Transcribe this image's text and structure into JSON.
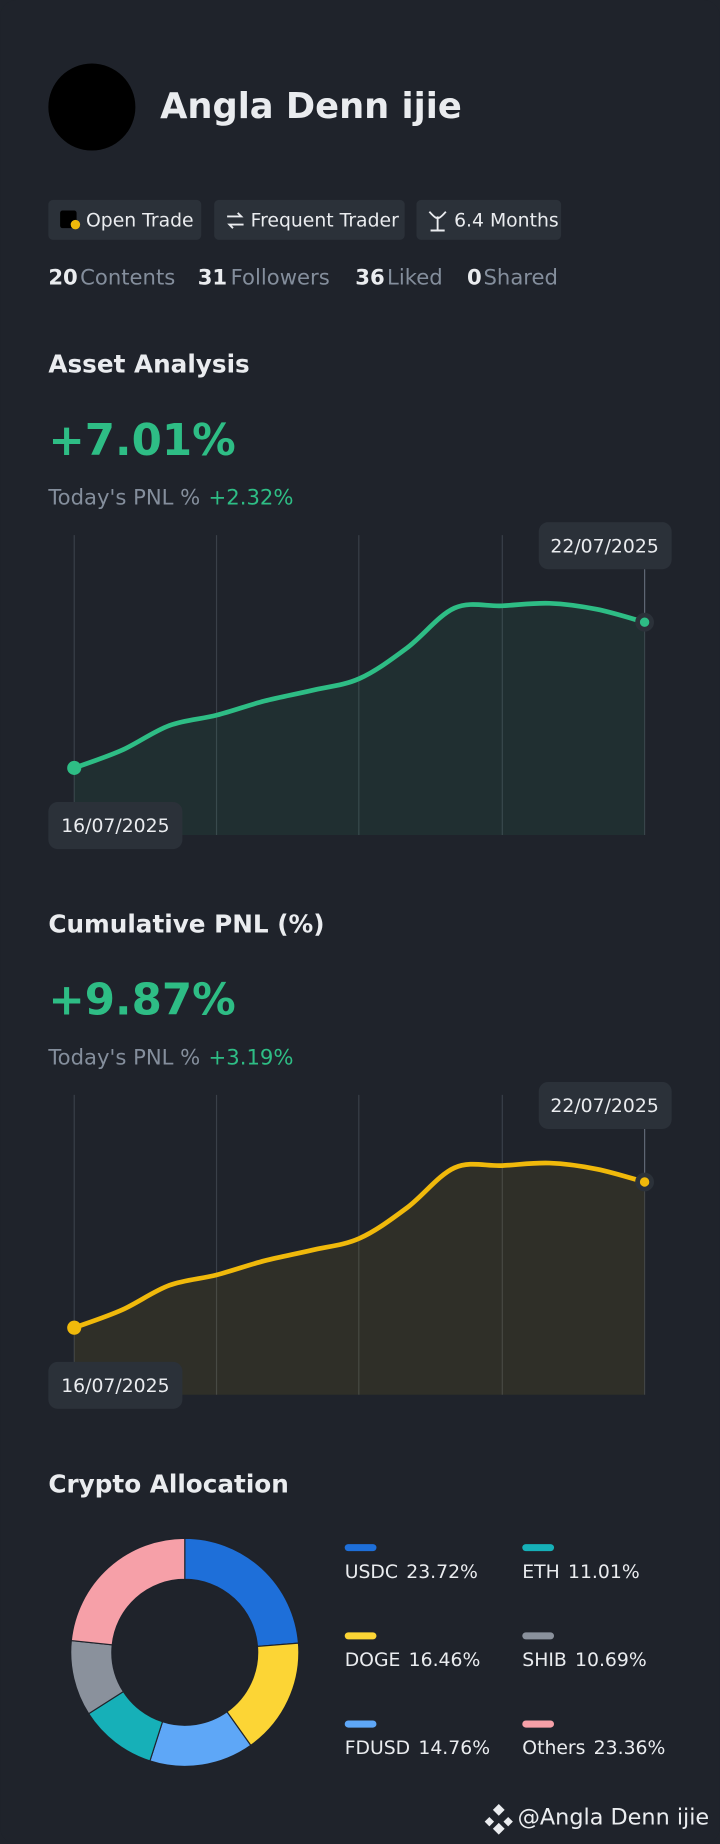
{
  "profile": {
    "name": "Angla Denn ijie",
    "badges": [
      "Open Trade",
      "Frequent Trader",
      "6.4 Months"
    ],
    "stats": [
      {
        "value": 20,
        "label": "Contents"
      },
      {
        "value": 31,
        "label": "Followers"
      },
      {
        "value": 36,
        "label": "Liked"
      },
      {
        "value": 0,
        "label": "Shared"
      }
    ]
  },
  "chart_data": [
    {
      "type": "line",
      "title": "Asset Analysis",
      "headline": "+7.01%",
      "subtitle": "Today's PNL %",
      "today": "+2.32%",
      "start_date": "16/07/2025",
      "end_date": "22/07/2025",
      "series": [
        {
          "color": "#2ebd85",
          "values": [
            0,
            0.85,
            2.04,
            2.54,
            3.22,
            3.73,
            4.3,
            5.77,
            7.69,
            7.8,
            7.92,
            7.63,
            7.01
          ]
        }
      ]
    },
    {
      "type": "line",
      "title": "Cumulative PNL (%)",
      "headline": "+9.87%",
      "subtitle": "Today's PNL %",
      "today": "+3.19%",
      "start_date": "16/07/2025",
      "end_date": "22/07/2025",
      "series": [
        {
          "color": "#f0b90b",
          "values": [
            0,
            1.2,
            2.87,
            3.58,
            4.53,
            5.25,
            6.05,
            8.12,
            10.83,
            10.98,
            11.15,
            10.74,
            9.87
          ]
        }
      ]
    },
    {
      "type": "pie",
      "title": "Crypto Allocation",
      "categories": [
        "USDC",
        "DOGE",
        "FDUSD",
        "ETH",
        "SHIB",
        "Others"
      ],
      "values": [
        23.72,
        16.46,
        14.76,
        11.01,
        10.69,
        23.36
      ],
      "value_labels": [
        "23.72%",
        "16.46%",
        "14.76%",
        "11.01%",
        "10.69%",
        "23.36%"
      ],
      "colors": [
        "#1e6fd9",
        "#fcd535",
        "#5ea7f7",
        "#16b0b8",
        "#8a919c",
        "#f6a0a8"
      ]
    }
  ],
  "footer": "@Angla Denn ijie"
}
